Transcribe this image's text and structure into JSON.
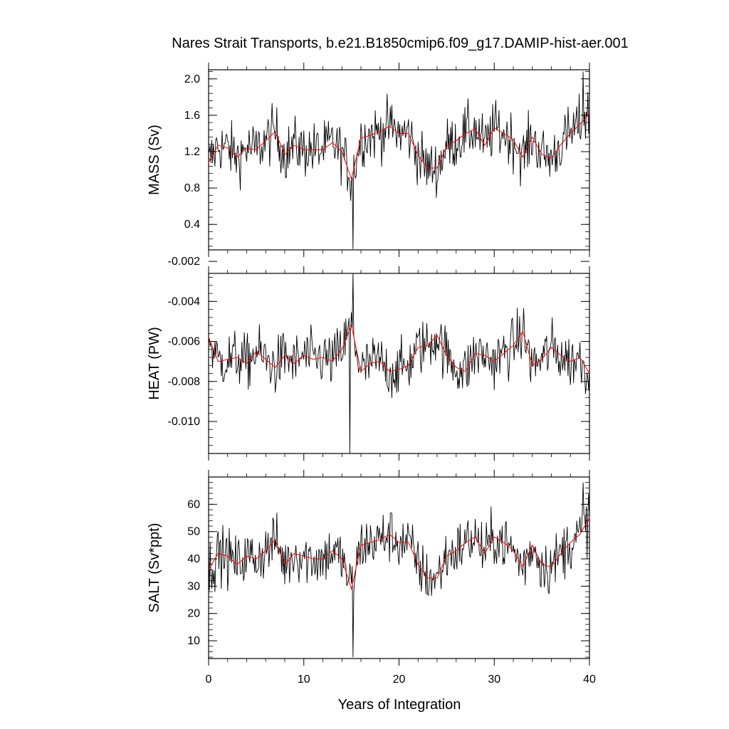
{
  "chart_data": {
    "type": "line",
    "title": "Nares Strait Transports, b.e21.B1850cmip6.f09_g17.DAMIP-hist-aer.001",
    "xlabel": "Years of Integration",
    "xlim": [
      0,
      40
    ],
    "xticks": [
      0,
      10,
      20,
      30,
      40
    ],
    "grid": false,
    "line_colors": {
      "monthly": "#000000",
      "annual_mean": "#ff0000"
    },
    "panels": [
      {
        "name": "MASS",
        "ylabel": "MASS (Sv)",
        "ylim": [
          0.12,
          2.1
        ],
        "yticks": [
          0.4,
          0.8,
          1.2,
          1.6,
          2.0
        ],
        "ytick_labels": [
          "0.4",
          "0.8",
          "1.2",
          "1.6",
          "2.0"
        ],
        "annual_mean": [
          1.08,
          1.27,
          1.24,
          1.14,
          1.24,
          1.22,
          1.32,
          1.42,
          1.17,
          1.27,
          1.22,
          1.22,
          1.22,
          1.3,
          1.2,
          0.9,
          1.35,
          1.38,
          1.42,
          1.48,
          1.4,
          1.4,
          1.16,
          1.02,
          1.02,
          1.26,
          1.32,
          1.4,
          1.45,
          1.27,
          1.46,
          1.4,
          1.33,
          1.14,
          1.36,
          1.17,
          1.13,
          1.28,
          1.4,
          1.5,
          1.62
        ],
        "monthly_stats": {
          "max": 2.08,
          "min": 0.13,
          "max_year": 39.3,
          "min_year": 15.2
        }
      },
      {
        "name": "HEAT",
        "ylabel": "HEAT (PW)",
        "ylim": [
          -0.0116,
          -0.0026
        ],
        "yticks": [
          -0.01,
          -0.008,
          -0.006,
          -0.004,
          -0.002
        ],
        "ytick_labels": [
          "-0.010",
          "-0.008",
          "-0.006",
          "-0.004",
          "-0.002"
        ],
        "annual_mean": [
          -0.0058,
          -0.007,
          -0.0069,
          -0.0068,
          -0.0071,
          -0.0065,
          -0.0069,
          -0.0073,
          -0.0067,
          -0.0071,
          -0.0067,
          -0.0069,
          -0.0068,
          -0.007,
          -0.0064,
          -0.0052,
          -0.0075,
          -0.0071,
          -0.007,
          -0.0075,
          -0.0074,
          -0.0072,
          -0.0063,
          -0.0062,
          -0.0057,
          -0.0067,
          -0.0073,
          -0.0075,
          -0.0066,
          -0.0067,
          -0.007,
          -0.0066,
          -0.0062,
          -0.0055,
          -0.0072,
          -0.0069,
          -0.0063,
          -0.0067,
          -0.007,
          -0.0068,
          -0.0076
        ],
        "monthly_stats": {
          "max": -0.0026,
          "min": -0.0116,
          "max_year": 15.2,
          "min_year": 14.8
        }
      },
      {
        "name": "SALT",
        "ylabel": "SALT (Sv*ppt)",
        "ylim": [
          3.5,
          70
        ],
        "yticks": [
          10,
          20,
          30,
          40,
          50,
          60
        ],
        "ytick_labels": [
          "10",
          "20",
          "30",
          "40",
          "50",
          "60"
        ],
        "annual_mean": [
          36,
          42,
          41,
          38,
          41,
          40,
          43,
          47,
          38,
          42,
          41,
          40,
          40,
          43,
          40,
          29,
          45,
          46,
          47,
          49,
          46,
          46,
          38,
          33,
          33,
          41,
          43,
          46,
          48,
          42,
          48,
          46,
          43,
          37,
          45,
          38,
          37,
          42,
          46,
          49,
          55
        ],
        "monthly_stats": {
          "max": 68,
          "min": 4,
          "max_year": 39.3,
          "min_year": 15.2
        }
      }
    ]
  }
}
